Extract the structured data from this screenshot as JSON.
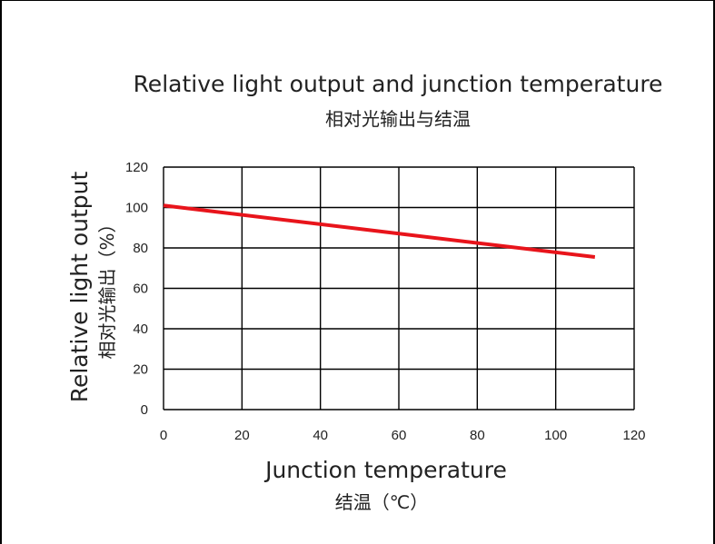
{
  "chart_data": {
    "type": "line",
    "title": "Relative light output and junction temperature",
    "subtitle": "相对光输出与结温",
    "xlabel": "Junction temperature",
    "xlabel_sub": "结温（℃）",
    "ylabel": "Relative light output",
    "ylabel_sub": "相对光输出（%）",
    "xlim": [
      0,
      120
    ],
    "ylim": [
      0,
      120
    ],
    "xticks": [
      "0",
      "20",
      "40",
      "60",
      "80",
      "100",
      "120"
    ],
    "yticks": [
      "0",
      "20",
      "40",
      "60",
      "80",
      "100",
      "120"
    ],
    "grid": true,
    "series": [
      {
        "x": [
          0,
          110
        ],
        "y": [
          101,
          75.5
        ],
        "color": "#e8141b"
      }
    ]
  }
}
